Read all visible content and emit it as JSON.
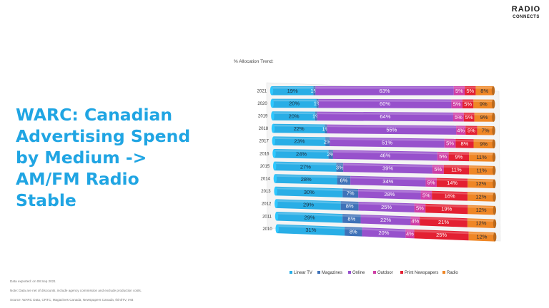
{
  "logo": {
    "line1": "RADIO",
    "line2": "CONNECTS"
  },
  "headline": "WARC: Canadian\nAdvertising Spend\nby Medium ->\nAM/FM Radio\nStable",
  "notes": [
    "Data exported: on 08 Sep 2021",
    "Note: Data are net of discounts, include agency commission and exclude production costs.",
    "Source: WARC Data, CRTC, Magazines Canada, Newspapers Canada, thinkTV, IAB"
  ],
  "colors": {
    "Linear TV": "#29aee6",
    "Magazines": "#3f72b8",
    "Online": "#9751cc",
    "Outdoor": "#cf3ea6",
    "Print Newspapers": "#e32032",
    "Radio": "#ef8625"
  },
  "chart_data": {
    "type": "bar",
    "orientation": "horizontal",
    "stacked": "100%",
    "title": "% Allocation Trend:",
    "categories": [
      "2021",
      "2020",
      "2019",
      "2018",
      "2017",
      "2016",
      "2015",
      "2014",
      "2013",
      "2012",
      "2011",
      "2010"
    ],
    "series": [
      {
        "name": "Linear TV",
        "values": [
          19,
          20,
          20,
          22,
          23,
          24,
          27,
          28,
          30,
          29,
          29,
          31
        ]
      },
      {
        "name": "Magazines",
        "values": [
          1,
          1,
          1,
          1,
          2,
          2,
          3,
          6,
          7,
          8,
          8,
          8
        ]
      },
      {
        "name": "Online",
        "values": [
          63,
          60,
          64,
          55,
          51,
          46,
          39,
          34,
          28,
          25,
          22,
          20
        ]
      },
      {
        "name": "Outdoor",
        "values": [
          5,
          5,
          5,
          4,
          5,
          5,
          5,
          5,
          5,
          5,
          4,
          4
        ]
      },
      {
        "name": "Print Newspapers",
        "values": [
          5,
          5,
          5,
          5,
          8,
          9,
          11,
          14,
          16,
          19,
          21,
          25
        ]
      },
      {
        "name": "Radio",
        "values": [
          8,
          9,
          9,
          7,
          9,
          11,
          11,
          12,
          12,
          12,
          12,
          12
        ]
      }
    ],
    "data_labels": true,
    "value_suffix": "%",
    "legend_position": "bottom",
    "legend": [
      "Linear TV",
      "Magazines",
      "Online",
      "Outdoor",
      "Print Newspapers",
      "Radio"
    ]
  }
}
